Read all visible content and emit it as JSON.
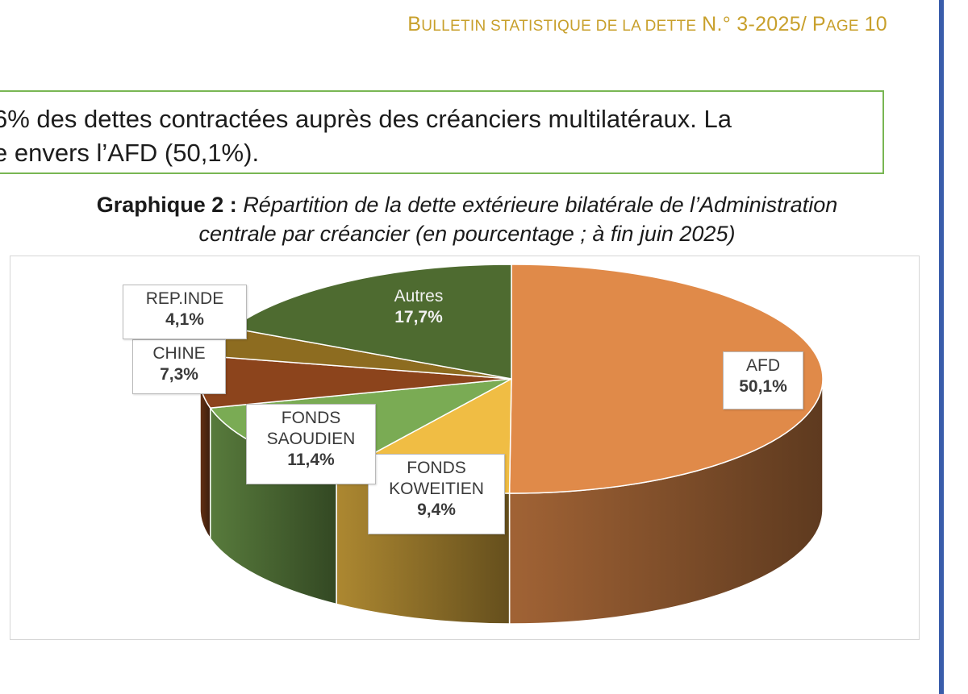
{
  "header": {
    "title_cap": "B",
    "title_rest": "ULLETIN STATISTIQUE DE LA DETTE",
    "title_num": "N.° 3-2025/",
    "page_cap": "P",
    "page_rest": "AGE",
    "page_num": "10"
  },
  "body_text": {
    "line1": "6% des dettes contractées auprès des créanciers multilatéraux. La",
    "line2": "e envers l’AFD (50,1%)."
  },
  "caption": {
    "label": "Graphique 2 :",
    "title_line1": "Répartition de la dette extérieure bilatérale de l’Administration",
    "title_line2": "centrale par créancier (en pourcentage ; à fin juin 2025)"
  },
  "chart_data": {
    "type": "pie",
    "title": "Répartition de la dette extérieure bilatérale de l’Administration centrale par créancier (en pourcentage ; à fin juin 2025)",
    "slices": [
      {
        "name": "AFD",
        "value": 50.1,
        "label_name": "AFD",
        "label_value": "50,1%",
        "color": "#e08a49"
      },
      {
        "name": "FONDS KOWEITIEN",
        "value": 9.4,
        "label_name": "FONDS KOWEITIEN",
        "label_value": "9,4%",
        "color": "#f0bd44"
      },
      {
        "name": "FONDS SAOUDIEN",
        "value": 11.4,
        "label_name": "FONDS SAOUDIEN",
        "label_value": "11,4%",
        "color": "#7aab54"
      },
      {
        "name": "CHINE",
        "value": 7.3,
        "label_name": "CHINE",
        "label_value": "7,3%",
        "color": "#8c441c"
      },
      {
        "name": "REP.INDE",
        "value": 4.1,
        "label_name": "REP.INDE",
        "label_value": "4,1%",
        "color": "#8d6c20"
      },
      {
        "name": "Autres",
        "value": 17.7,
        "label_name": "Autres",
        "label_value": "17,7%",
        "color": "#4e6b30"
      }
    ],
    "legend": "none",
    "grid": false
  }
}
